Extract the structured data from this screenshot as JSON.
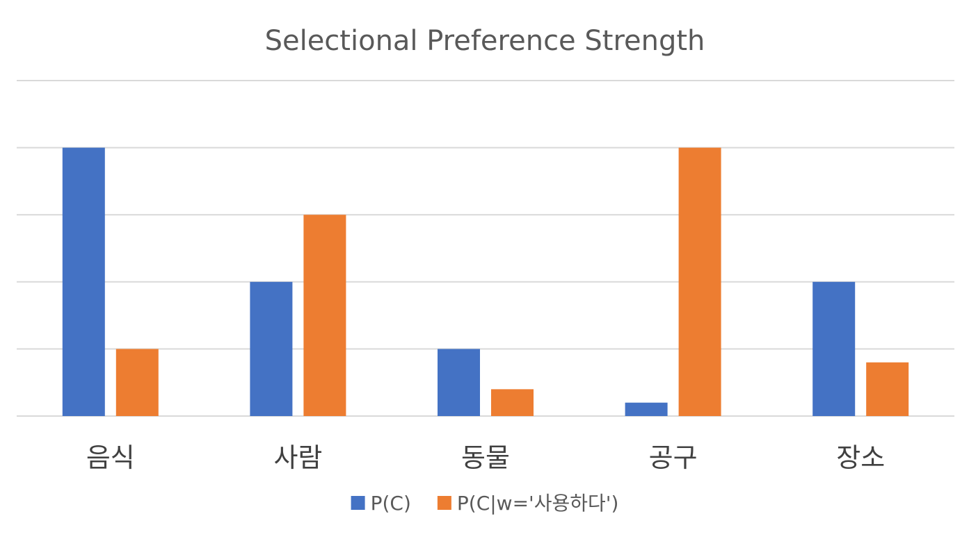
{
  "chart_data": {
    "type": "bar",
    "title": "Selectional Preference Strength",
    "xlabel": "",
    "ylabel": "",
    "categories": [
      "음식",
      "사람",
      "동물",
      "공구",
      "장소"
    ],
    "series": [
      {
        "name": "P(C)",
        "color": "#4472c4",
        "values": [
          0.4,
          0.2,
          0.1,
          0.02,
          0.2
        ]
      },
      {
        "name": "P(C|w='사용하다')",
        "color": "#ed7d31",
        "values": [
          0.1,
          0.3,
          0.04,
          0.4,
          0.08
        ]
      }
    ],
    "ylim": [
      0,
      0.5
    ],
    "y_ticks": [
      0,
      0.1,
      0.2,
      0.3,
      0.4,
      0.5
    ],
    "y_tick_labels_visible": false,
    "grid": true,
    "legend_position": "bottom"
  }
}
